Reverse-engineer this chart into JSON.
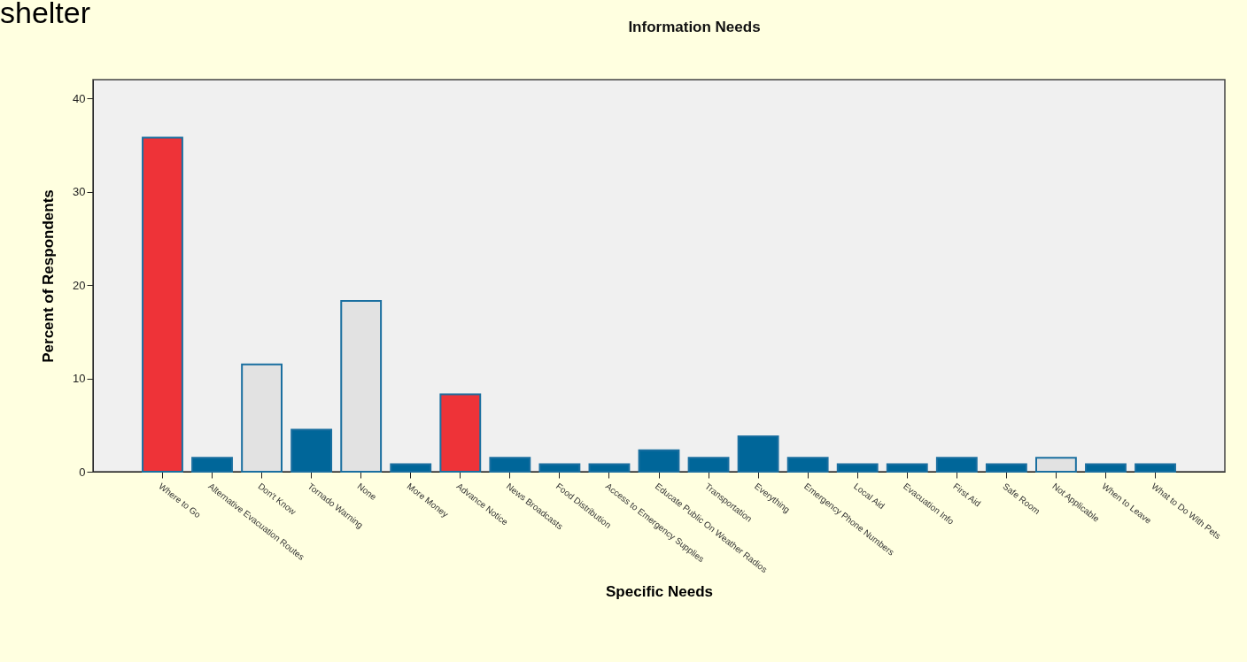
{
  "chart_data": {
    "type": "bar",
    "title": "Information Needs",
    "xlabel": "Specific  Needs",
    "ylabel": "Percent of Respondents",
    "annotations": [
      "shelter"
    ],
    "categories": [
      "Where to Go",
      "Alternative Evacuation Routes",
      "Don't Know",
      "Tornado Warning",
      "None",
      "More Money",
      "Advance Notice",
      "News Broadcasts",
      "Food Distribution",
      "Access to Emergency Supplies",
      "Educate Public On Weather Radios",
      "Transportation",
      "Everything",
      "Emergency Phone Numbers",
      "Local Aid",
      "Evacuation Info",
      "First Aid",
      "Safe Room",
      "Not Applicable",
      "When to Leave",
      "What to Do With Pets"
    ],
    "values": [
      35.8,
      1.5,
      11.5,
      4.5,
      18.3,
      0.8,
      8.3,
      1.5,
      0.8,
      0.8,
      2.3,
      1.5,
      3.8,
      1.5,
      0.8,
      0.8,
      1.5,
      0.8,
      1.5,
      0.8,
      0.8
    ],
    "colors": [
      "#ee3338",
      "#006699",
      "#e2e2e2",
      "#006699",
      "#e2e2e2",
      "#006699",
      "#ee3338",
      "#006699",
      "#006699",
      "#006699",
      "#006699",
      "#006699",
      "#006699",
      "#006699",
      "#006699",
      "#006699",
      "#006699",
      "#006699",
      "#e2e2e2",
      "#006699",
      "#006699"
    ],
    "ylim": [
      0,
      42
    ],
    "yticks": [
      0,
      10,
      20,
      30,
      40
    ],
    "grid": false,
    "legend": false
  }
}
